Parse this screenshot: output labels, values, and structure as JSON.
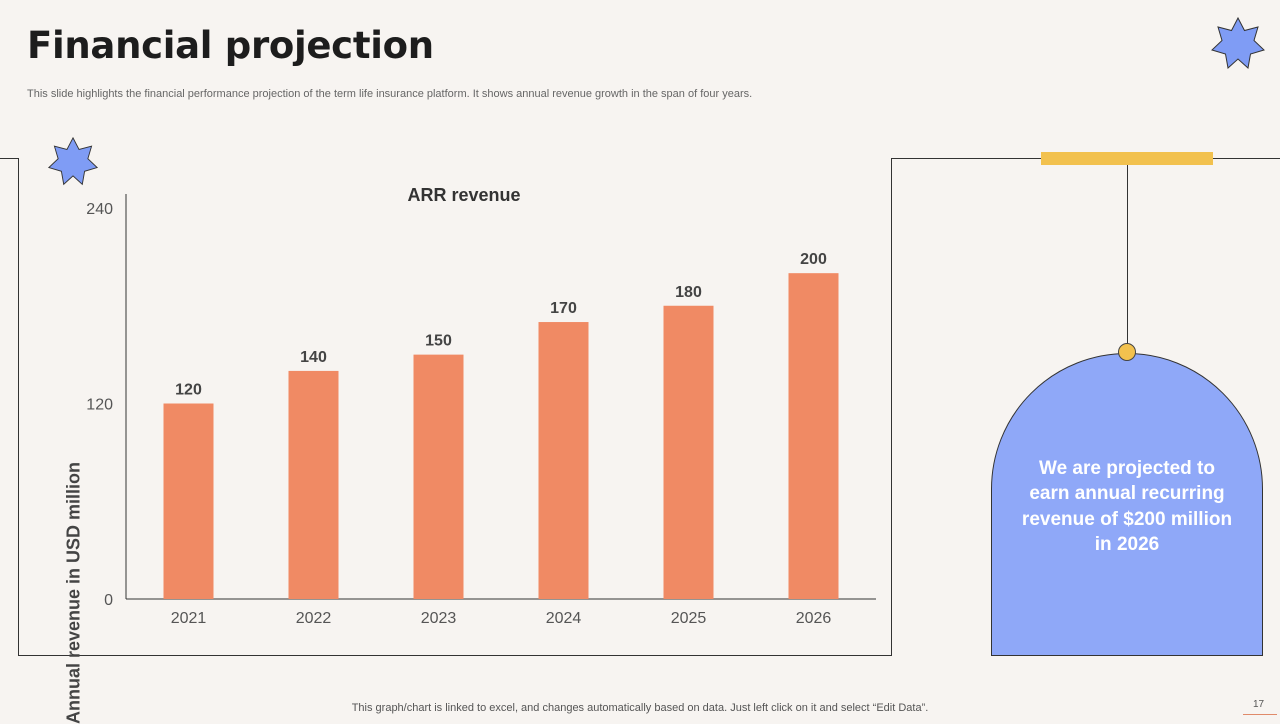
{
  "slide": {
    "title": "Financial projection",
    "subtitle": "This slide highlights the financial performance projection of the term life insurance platform. It shows annual revenue growth in the span of four years.",
    "footer": "This graph/chart is linked to excel,  and changes automatically based on data. Just left click on it and select “Edit Data”.",
    "page_number": "17"
  },
  "callout": {
    "text": "We are projected  to earn annual recurring revenue of $200 million in 2026"
  },
  "colors": {
    "bar": "#f08a64",
    "arch": "#8fa8f8",
    "accent_yellow": "#f2c14e",
    "star": "#7f9cf5"
  },
  "chart_data": {
    "type": "bar",
    "title": "ARR revenue",
    "xlabel": "",
    "ylabel": "Annual revenue in USD million",
    "categories": [
      "2021",
      "2022",
      "2023",
      "2024",
      "2025",
      "2026"
    ],
    "values": [
      120,
      140,
      150,
      170,
      180,
      200
    ],
    "ylim": [
      0,
      240
    ],
    "yticks": [
      0,
      120,
      240
    ],
    "grid": false,
    "legend": "none"
  }
}
